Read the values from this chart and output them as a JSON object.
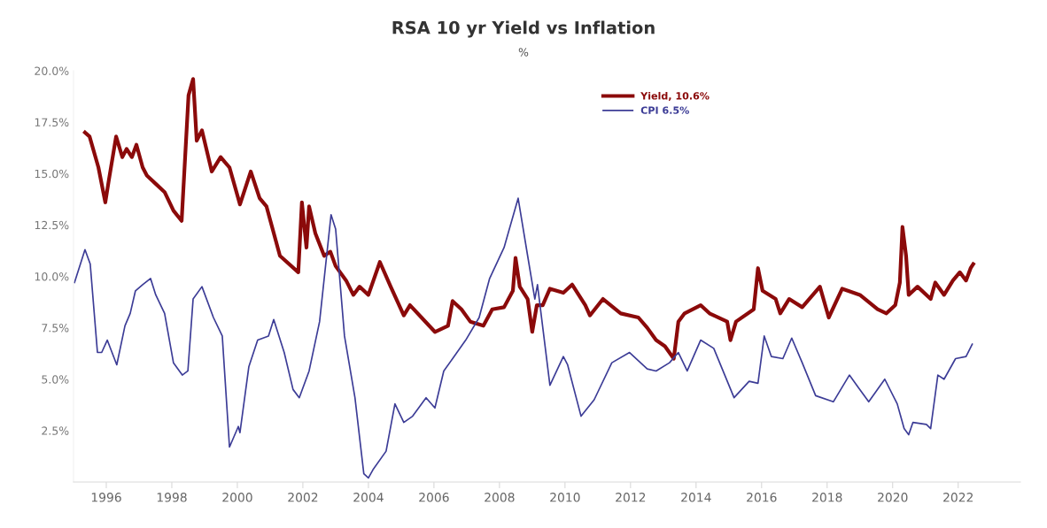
{
  "chart_data": {
    "type": "line",
    "title": "RSA 10 yr Yield vs Inflation",
    "subtitle": "%",
    "xlim": [
      1995.0,
      2023.9
    ],
    "xticks": [
      1996,
      1998,
      2000,
      2002,
      2004,
      2006,
      2008,
      2010,
      2012,
      2014,
      2016,
      2018,
      2020,
      2022
    ],
    "ylim": [
      0,
      20
    ],
    "yticks": [
      {
        "value": 2.5,
        "label": "2.5%"
      },
      {
        "value": 5,
        "label": "5.0%"
      },
      {
        "value": 7.5,
        "label": "7.5%"
      },
      {
        "value": 10,
        "label": "10.0%"
      },
      {
        "value": 12.5,
        "label": "12.5%"
      },
      {
        "value": 15,
        "label": "15.0%"
      },
      {
        "value": 17.5,
        "label": "17.5%"
      },
      {
        "value": 20,
        "label": "20.0%"
      }
    ],
    "grid": false,
    "legend": "top",
    "marker": "none",
    "line_style": "solid",
    "series": [
      {
        "name": "Yield, 10.6%",
        "color": "#8b0a0a",
        "x": [
          1995.35,
          1995.49,
          1995.76,
          1995.97,
          1996.08,
          1996.3,
          1996.49,
          1996.62,
          1996.78,
          1996.92,
          1997.11,
          1997.24,
          1997.51,
          1997.78,
          1998.05,
          1998.3,
          1998.51,
          1998.65,
          1998.76,
          1998.92,
          1999.22,
          1999.49,
          1999.76,
          2000.08,
          2000.41,
          2000.68,
          2000.89,
          2001.3,
          2001.86,
          2001.97,
          2002.11,
          2002.19,
          2002.38,
          2002.65,
          2002.84,
          2003.0,
          2003.32,
          2003.54,
          2003.73,
          2004.0,
          2004.35,
          2004.68,
          2005.08,
          2005.27,
          2005.62,
          2006.03,
          2006.43,
          2006.57,
          2006.84,
          2007.11,
          2007.51,
          2007.78,
          2008.14,
          2008.41,
          2008.49,
          2008.62,
          2008.86,
          2009.0,
          2009.14,
          2009.32,
          2009.54,
          2009.95,
          2010.22,
          2010.62,
          2010.76,
          2011.16,
          2011.7,
          2012.24,
          2012.51,
          2012.78,
          2013.05,
          2013.32,
          2013.46,
          2013.65,
          2014.14,
          2014.41,
          2014.95,
          2015.05,
          2015.22,
          2015.76,
          2015.89,
          2016.03,
          2016.43,
          2016.57,
          2016.84,
          2017.24,
          2017.78,
          2018.05,
          2018.46,
          2019.0,
          2019.54,
          2019.81,
          2020.08,
          2020.22,
          2020.3,
          2020.41,
          2020.49,
          2020.76,
          2021.16,
          2021.3,
          2021.57,
          2021.84,
          2022.05,
          2022.24,
          2022.38,
          2022.46
        ],
        "values": [
          17.0,
          16.8,
          15.3,
          13.6,
          14.7,
          16.8,
          15.8,
          16.2,
          15.8,
          16.4,
          15.3,
          14.9,
          14.5,
          14.1,
          13.2,
          12.7,
          18.8,
          19.6,
          16.6,
          17.1,
          15.1,
          15.8,
          15.3,
          13.5,
          15.1,
          13.8,
          13.4,
          11.0,
          10.2,
          13.6,
          11.4,
          13.4,
          12.1,
          11.0,
          11.2,
          10.5,
          9.8,
          9.1,
          9.5,
          9.1,
          10.7,
          9.5,
          8.1,
          8.6,
          8.0,
          7.3,
          7.6,
          8.8,
          8.4,
          7.8,
          7.6,
          8.4,
          8.5,
          9.3,
          10.9,
          9.5,
          8.9,
          7.3,
          8.6,
          8.6,
          9.4,
          9.2,
          9.6,
          8.6,
          8.1,
          8.9,
          8.2,
          8.0,
          7.5,
          6.9,
          6.6,
          6.0,
          7.8,
          8.2,
          8.6,
          8.2,
          7.8,
          6.9,
          7.8,
          8.4,
          10.4,
          9.3,
          8.9,
          8.2,
          8.9,
          8.5,
          9.5,
          8.0,
          9.4,
          9.1,
          8.4,
          8.2,
          8.6,
          9.7,
          12.4,
          11.0,
          9.1,
          9.5,
          8.9,
          9.7,
          9.1,
          9.8,
          10.2,
          9.8,
          10.4,
          10.6
        ]
      },
      {
        "name": "CPI 6.5%",
        "color": "#3c3c96",
        "x": [
          1995.03,
          1995.35,
          1995.51,
          1995.73,
          1995.86,
          1996.03,
          1996.32,
          1996.57,
          1996.73,
          1996.89,
          1997.11,
          1997.35,
          1997.51,
          1997.78,
          1998.05,
          1998.32,
          1998.49,
          1998.65,
          1998.92,
          1999.27,
          1999.54,
          1999.76,
          2000.03,
          2000.08,
          2000.35,
          2000.62,
          2000.95,
          2001.11,
          2001.43,
          2001.7,
          2001.89,
          2002.19,
          2002.51,
          2002.86,
          2003.0,
          2003.27,
          2003.59,
          2003.86,
          2004.0,
          2004.14,
          2004.54,
          2004.81,
          2005.08,
          2005.35,
          2005.76,
          2006.03,
          2006.3,
          2006.57,
          2006.97,
          2007.38,
          2007.7,
          2008.14,
          2008.57,
          2008.86,
          2009.08,
          2009.16,
          2009.54,
          2009.95,
          2010.08,
          2010.49,
          2010.89,
          2011.43,
          2011.97,
          2012.51,
          2012.78,
          2013.19,
          2013.46,
          2013.73,
          2014.14,
          2014.54,
          2015.16,
          2015.62,
          2015.89,
          2016.08,
          2016.3,
          2016.65,
          2016.92,
          2017.24,
          2017.65,
          2018.19,
          2018.68,
          2018.95,
          2019.27,
          2019.76,
          2020.14,
          2020.35,
          2020.49,
          2020.62,
          2021.03,
          2021.16,
          2021.38,
          2021.57,
          2021.92,
          2022.24,
          2022.43
        ],
        "values": [
          9.7,
          11.3,
          10.6,
          6.3,
          6.3,
          6.9,
          5.7,
          7.6,
          8.2,
          9.3,
          9.6,
          9.9,
          9.1,
          8.2,
          5.8,
          5.2,
          5.4,
          8.9,
          9.5,
          8.0,
          7.1,
          1.7,
          2.7,
          2.4,
          5.6,
          6.9,
          7.1,
          7.9,
          6.3,
          4.5,
          4.1,
          5.4,
          7.8,
          13.0,
          12.3,
          7.1,
          4.1,
          0.4,
          0.2,
          0.6,
          1.5,
          3.8,
          2.9,
          3.2,
          4.1,
          3.6,
          5.4,
          6.0,
          6.9,
          8.0,
          9.9,
          11.4,
          13.8,
          11.0,
          8.9,
          9.6,
          4.7,
          6.1,
          5.7,
          3.2,
          4.0,
          5.8,
          6.3,
          5.5,
          5.4,
          5.8,
          6.3,
          5.4,
          6.9,
          6.5,
          4.1,
          4.9,
          4.8,
          7.1,
          6.1,
          6.0,
          7.0,
          5.8,
          4.2,
          3.9,
          5.2,
          4.6,
          3.9,
          5.0,
          3.8,
          2.6,
          2.3,
          2.9,
          2.8,
          2.6,
          5.2,
          5.0,
          6.0,
          6.1,
          6.7
        ]
      }
    ]
  }
}
